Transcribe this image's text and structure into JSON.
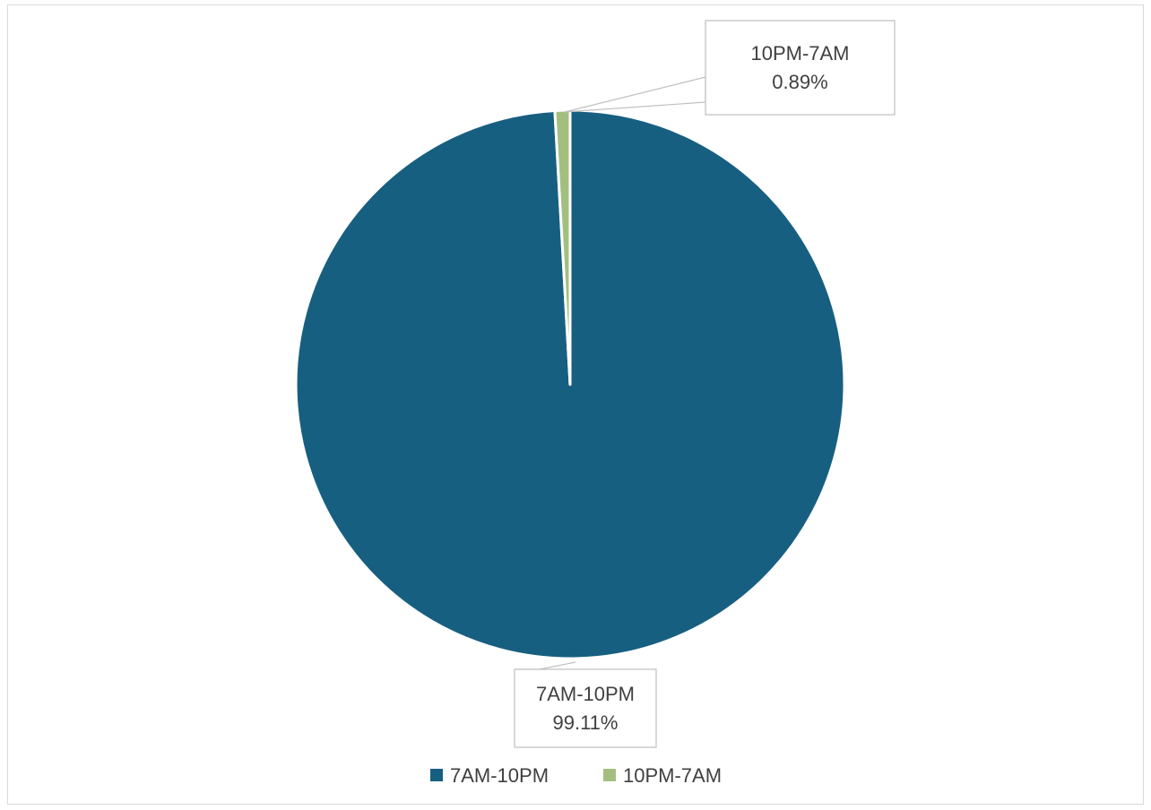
{
  "chart_data": {
    "type": "pie",
    "title": "",
    "categories": [
      "7AM-10PM",
      "10PM-7AM"
    ],
    "values": [
      99.11,
      0.89
    ],
    "value_unit": "%",
    "colors": [
      "#175f80",
      "#a3bf80"
    ],
    "data_labels": [
      {
        "category": "7AM-10PM",
        "value_text": "99.11%"
      },
      {
        "category": "10PM-7AM",
        "value_text": "0.89%"
      }
    ],
    "legend": {
      "position": "bottom",
      "entries": [
        "7AM-10PM",
        "10PM-7AM"
      ]
    }
  }
}
